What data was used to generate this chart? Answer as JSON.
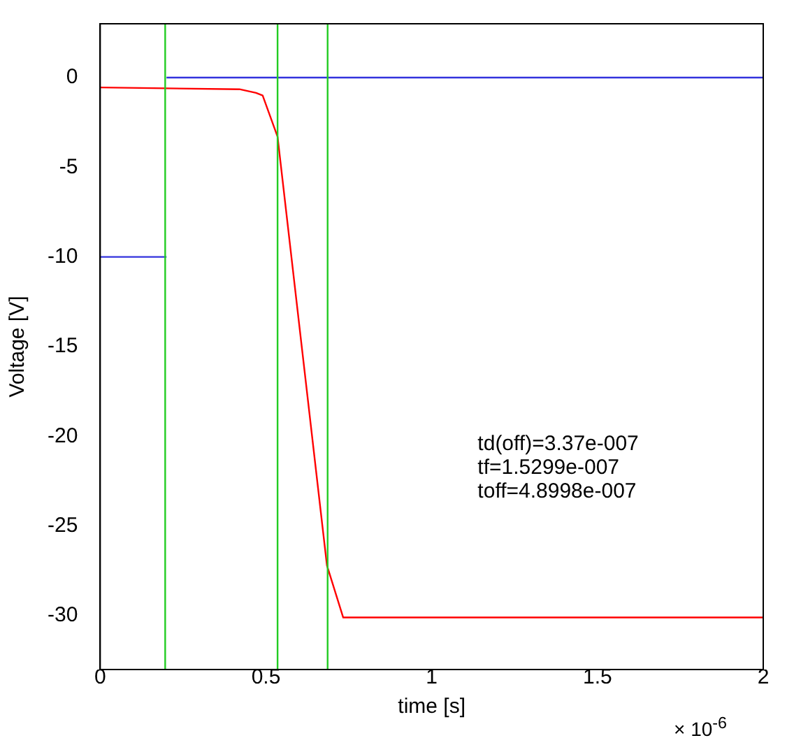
{
  "chart_data": {
    "type": "line",
    "xlabel": "time [s]",
    "ylabel": "Voltage [V]",
    "xlim": [
      0,
      2
    ],
    "xticks": [
      0,
      0.5,
      1,
      {
        "value": 1.5,
        "label": "1.5"
      },
      2
    ],
    "ylim": [
      -33,
      3
    ],
    "yticks": [
      -30,
      -25,
      -20,
      -15,
      -10,
      -5,
      0
    ],
    "grid": false,
    "legend": false,
    "marker": "none",
    "line_style": "solid",
    "series": [
      {
        "color": "#ff0000",
        "x": [
          0,
          0.2,
          0.42,
          0.47,
          0.49,
          0.535,
          0.684,
          0.733,
          2
        ],
        "values": [
          -0.55,
          -0.6,
          -0.65,
          -0.85,
          -1,
          -3.3,
          -27.2,
          -30.1,
          -30.1
        ]
      },
      {
        "color": "#3333dd",
        "x": [
          0.2,
          2
        ],
        "values": [
          0,
          0
        ]
      },
      {
        "color": "#3333dd",
        "x": [
          0,
          0.2
        ],
        "values": [
          -10,
          -10
        ]
      }
    ],
    "ref_lines": [
      {
        "axis": "x",
        "value": 0.196,
        "color": "#22cc22"
      },
      {
        "axis": "x",
        "value": 0.535,
        "color": "#22cc22"
      },
      {
        "axis": "x",
        "value": 0.686,
        "color": "#22cc22"
      }
    ],
    "annotations": [
      "× 10$^{-6}$",
      "td(off)=3.37e-007",
      "tf=1.5299e-007",
      "toff=4.8998e-007"
    ]
  }
}
